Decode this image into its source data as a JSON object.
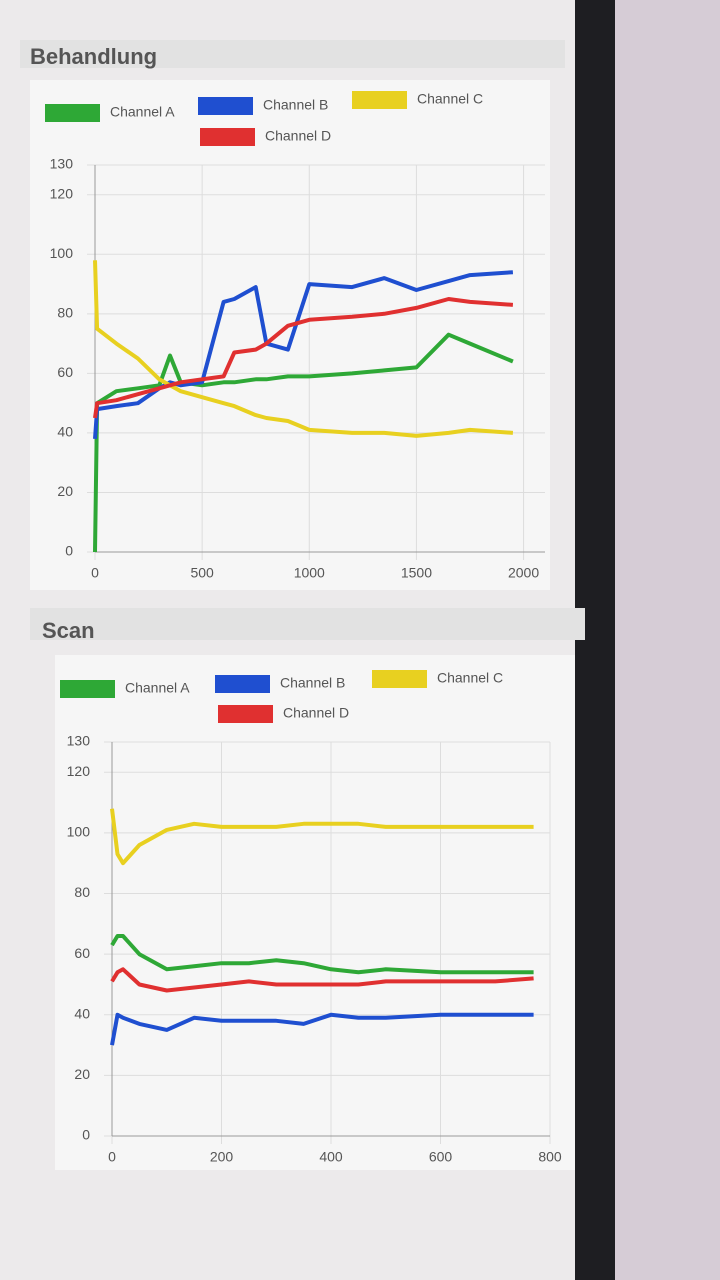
{
  "chart_data": [
    {
      "type": "line",
      "title": "Behandlung",
      "x": [
        0,
        10,
        100,
        200,
        300,
        350,
        400,
        500,
        600,
        650,
        750,
        800,
        900,
        1000,
        1200,
        1350,
        1500,
        1650,
        1750,
        1950
      ],
      "series": [
        {
          "name": "Channel A",
          "color": "#2ea836",
          "values": [
            0,
            50,
            54,
            55,
            56,
            66,
            57,
            56,
            57,
            57,
            58,
            58,
            59,
            59,
            60,
            61,
            62,
            73,
            70,
            64
          ]
        },
        {
          "name": "Channel B",
          "color": "#1f4fd0",
          "values": [
            38,
            48,
            49,
            50,
            55,
            57,
            56,
            57,
            84,
            85,
            89,
            70,
            68,
            90,
            89,
            92,
            88,
            91,
            93,
            94
          ]
        },
        {
          "name": "Channel C",
          "color": "#e8d020",
          "values": [
            98,
            75,
            70,
            65,
            58,
            56,
            54,
            52,
            50,
            49,
            46,
            45,
            44,
            41,
            40,
            40,
            39,
            40,
            41,
            40
          ]
        },
        {
          "name": "Channel D",
          "color": "#e03030",
          "values": [
            45,
            50,
            51,
            53,
            55,
            56,
            57,
            58,
            59,
            67,
            68,
            70,
            76,
            78,
            79,
            80,
            82,
            85,
            84,
            83
          ]
        }
      ],
      "xlim": [
        0,
        2100
      ],
      "xticks": [
        0,
        500,
        1000,
        1500,
        2000
      ],
      "ylim": [
        0,
        130
      ],
      "yticks": [
        0,
        20,
        40,
        60,
        80,
        100,
        120,
        130
      ],
      "grid": true
    },
    {
      "type": "line",
      "title": "Scan",
      "x": [
        0,
        10,
        20,
        50,
        100,
        150,
        200,
        250,
        300,
        350,
        400,
        450,
        500,
        600,
        700,
        770
      ],
      "series": [
        {
          "name": "Channel A",
          "color": "#2ea836",
          "values": [
            63,
            66,
            66,
            60,
            55,
            56,
            57,
            57,
            58,
            57,
            55,
            54,
            55,
            54,
            54,
            54
          ]
        },
        {
          "name": "Channel B",
          "color": "#1f4fd0",
          "values": [
            30,
            40,
            39,
            37,
            35,
            39,
            38,
            38,
            38,
            37,
            40,
            39,
            39,
            40,
            40,
            40
          ]
        },
        {
          "name": "Channel C",
          "color": "#e8d020",
          "values": [
            108,
            93,
            90,
            96,
            101,
            103,
            102,
            102,
            102,
            103,
            103,
            103,
            102,
            102,
            102,
            102
          ]
        },
        {
          "name": "Channel D",
          "color": "#e03030",
          "values": [
            51,
            54,
            55,
            50,
            48,
            49,
            50,
            51,
            50,
            50,
            50,
            50,
            51,
            51,
            51,
            52
          ]
        }
      ],
      "xlim": [
        0,
        800
      ],
      "xticks": [
        0,
        200,
        400,
        600,
        800
      ],
      "ylim": [
        0,
        130
      ],
      "yticks": [
        0,
        20,
        40,
        60,
        80,
        100,
        120,
        130
      ],
      "grid": true
    }
  ]
}
